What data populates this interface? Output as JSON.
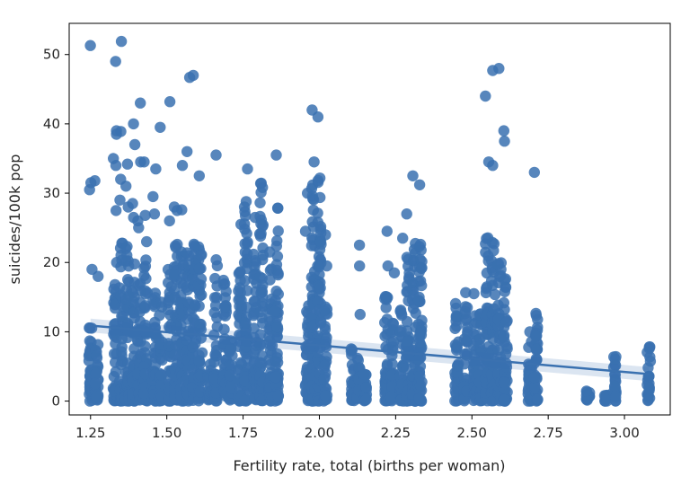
{
  "chart_data": {
    "type": "scatter",
    "title": "",
    "xlabel": "Fertility rate, total (births per woman)",
    "ylabel": "suicides/100k pop",
    "xlim": [
      1.18,
      3.15
    ],
    "ylim": [
      -2,
      54.5
    ],
    "x_ticks": [
      1.25,
      1.5,
      1.75,
      2.0,
      2.25,
      2.5,
      2.75,
      3.0
    ],
    "x_tick_labels": [
      "1.25",
      "1.50",
      "1.75",
      "2.00",
      "2.25",
      "2.50",
      "2.75",
      "3.00"
    ],
    "y_ticks": [
      0,
      10,
      20,
      30,
      40,
      50
    ],
    "y_tick_labels": [
      "0",
      "10",
      "20",
      "30",
      "40",
      "50"
    ],
    "grid": false,
    "legend": "none",
    "color": "#3a71b0",
    "regression": {
      "x": [
        1.25,
        3.08
      ],
      "y": [
        10.9,
        3.9
      ]
    },
    "columns": [
      {
        "x": 1.25,
        "lo": 0,
        "hi": 12,
        "extra": [
          31.5,
          30.5,
          19,
          51.3
        ]
      },
      {
        "x": 1.27,
        "lo": 0,
        "hi": 9,
        "extra": [
          31.8,
          18
        ]
      },
      {
        "x": 1.33,
        "lo": 0,
        "hi": 17,
        "extra": [
          35,
          34,
          27.5,
          39,
          38.5,
          49,
          20
        ]
      },
      {
        "x": 1.35,
        "lo": 0,
        "hi": 23,
        "extra": [
          38.9,
          32,
          29,
          51.9
        ]
      },
      {
        "x": 1.37,
        "lo": 0,
        "hi": 24,
        "extra": [
          34.2,
          28,
          31
        ]
      },
      {
        "x": 1.39,
        "lo": 0,
        "hi": 20,
        "extra": [
          37,
          40,
          28.5,
          26.5
        ]
      },
      {
        "x": 1.41,
        "lo": 0,
        "hi": 21,
        "extra": [
          43,
          34.5,
          26,
          25
        ]
      },
      {
        "x": 1.43,
        "lo": 0,
        "hi": 21,
        "extra": [
          26.8,
          34.5,
          23
        ]
      },
      {
        "x": 1.46,
        "lo": 0,
        "hi": 18,
        "extra": [
          33.5,
          29.5,
          27
        ]
      },
      {
        "x": 1.48,
        "lo": 0,
        "hi": 15,
        "extra": [
          39.5
        ]
      },
      {
        "x": 1.51,
        "lo": 0,
        "hi": 20,
        "extra": [
          43.2,
          26
        ]
      },
      {
        "x": 1.53,
        "lo": 0,
        "hi": 24,
        "extra": [
          28,
          27.5
        ]
      },
      {
        "x": 1.55,
        "lo": 0,
        "hi": 23,
        "extra": [
          34,
          27.6
        ]
      },
      {
        "x": 1.57,
        "lo": 0,
        "hi": 22,
        "extra": [
          36,
          46.7
        ]
      },
      {
        "x": 1.59,
        "lo": 0,
        "hi": 24,
        "extra": [
          47
        ]
      },
      {
        "x": 1.61,
        "lo": 0,
        "hi": 23,
        "extra": [
          32.5
        ]
      },
      {
        "x": 1.64,
        "lo": 0,
        "hi": 6,
        "extra": []
      },
      {
        "x": 1.66,
        "lo": 0,
        "hi": 21,
        "extra": [
          35.5
        ]
      },
      {
        "x": 1.69,
        "lo": 0,
        "hi": 18,
        "extra": []
      },
      {
        "x": 1.71,
        "lo": 0,
        "hi": 9,
        "extra": []
      },
      {
        "x": 1.74,
        "lo": 0,
        "hi": 19,
        "extra": [
          25.5
        ]
      },
      {
        "x": 1.76,
        "lo": 0,
        "hi": 30,
        "extra": [
          33.5
        ]
      },
      {
        "x": 1.79,
        "lo": 0,
        "hi": 22,
        "extra": [
          26.5
        ]
      },
      {
        "x": 1.81,
        "lo": 0,
        "hi": 33,
        "extra": []
      },
      {
        "x": 1.84,
        "lo": 0,
        "hi": 22,
        "extra": []
      },
      {
        "x": 1.86,
        "lo": 0,
        "hi": 28,
        "extra": [
          35.5
        ]
      },
      {
        "x": 1.96,
        "lo": 0,
        "hi": 14,
        "extra": [
          30,
          24.5
        ]
      },
      {
        "x": 1.98,
        "lo": 0,
        "hi": 35,
        "extra": [
          42
        ]
      },
      {
        "x": 2.0,
        "lo": 0,
        "hi": 35,
        "extra": [
          41,
          23
        ]
      },
      {
        "x": 2.02,
        "lo": 0,
        "hi": 14,
        "extra": [
          19.5,
          24
        ]
      },
      {
        "x": 2.11,
        "lo": 0,
        "hi": 8,
        "extra": []
      },
      {
        "x": 2.13,
        "lo": 0,
        "hi": 7,
        "extra": [
          12.5,
          19.5,
          22.5
        ]
      },
      {
        "x": 2.15,
        "lo": 0,
        "hi": 4,
        "extra": []
      },
      {
        "x": 2.22,
        "lo": 0,
        "hi": 16,
        "extra": [
          24.5,
          19.5
        ]
      },
      {
        "x": 2.24,
        "lo": 0,
        "hi": 13,
        "extra": [
          18.5
        ]
      },
      {
        "x": 2.27,
        "lo": 0,
        "hi": 16,
        "extra": [
          23.5
        ]
      },
      {
        "x": 2.29,
        "lo": 0,
        "hi": 22,
        "extra": [
          27
        ]
      },
      {
        "x": 2.31,
        "lo": 0,
        "hi": 24,
        "extra": [
          32.5
        ]
      },
      {
        "x": 2.33,
        "lo": 0,
        "hi": 25,
        "extra": [
          31.2
        ]
      },
      {
        "x": 2.45,
        "lo": 0,
        "hi": 15,
        "extra": []
      },
      {
        "x": 2.48,
        "lo": 0,
        "hi": 16,
        "extra": []
      },
      {
        "x": 2.51,
        "lo": 0,
        "hi": 13,
        "extra": [
          15.5
        ]
      },
      {
        "x": 2.53,
        "lo": 0,
        "hi": 13,
        "extra": []
      },
      {
        "x": 2.55,
        "lo": 0,
        "hi": 25,
        "extra": [
          34.5,
          44
        ]
      },
      {
        "x": 2.57,
        "lo": 0,
        "hi": 23,
        "extra": [
          34,
          47.7
        ]
      },
      {
        "x": 2.59,
        "lo": 0,
        "hi": 20,
        "extra": [
          48
        ]
      },
      {
        "x": 2.61,
        "lo": 0,
        "hi": 20,
        "extra": [
          37.5,
          39
        ]
      },
      {
        "x": 2.69,
        "lo": 0,
        "hi": 13,
        "extra": []
      },
      {
        "x": 2.71,
        "lo": 0,
        "hi": 14,
        "extra": [
          33
        ]
      },
      {
        "x": 2.88,
        "lo": 0,
        "hi": 1.5,
        "extra": []
      },
      {
        "x": 2.94,
        "lo": 0,
        "hi": 1,
        "extra": []
      },
      {
        "x": 2.97,
        "lo": 0,
        "hi": 6.5,
        "extra": []
      },
      {
        "x": 3.08,
        "lo": 0,
        "hi": 8,
        "extra": []
      }
    ]
  }
}
